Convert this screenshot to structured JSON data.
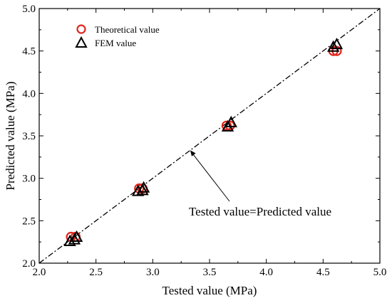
{
  "chart_data": {
    "type": "scatter",
    "xlabel": "Tested value (MPa)",
    "ylabel": "Predicted value (MPa)",
    "xlim": [
      2.0,
      5.0
    ],
    "ylim": [
      2.0,
      5.0
    ],
    "x_ticks": [
      "2.0",
      "2.5",
      "3.0",
      "3.5",
      "4.0",
      "4.5",
      "5.0"
    ],
    "y_ticks": [
      "2.0",
      "2.5",
      "3.0",
      "3.5",
      "4.0",
      "4.5",
      "5.0"
    ],
    "grid": false,
    "legend_position": "top-left",
    "series": [
      {
        "name": "Theoretical value",
        "marker": "circle",
        "color": "#e0261d",
        "points": [
          {
            "x": 2.28,
            "y": 2.31
          },
          {
            "x": 2.32,
            "y": 2.31
          },
          {
            "x": 2.88,
            "y": 2.88
          },
          {
            "x": 2.91,
            "y": 2.88
          },
          {
            "x": 3.65,
            "y": 3.62
          },
          {
            "x": 3.68,
            "y": 3.62
          },
          {
            "x": 4.59,
            "y": 4.5
          },
          {
            "x": 4.62,
            "y": 4.5
          }
        ]
      },
      {
        "name": "FEM value",
        "marker": "triangle",
        "color": "#000000",
        "points": [
          {
            "x": 2.27,
            "y": 2.26
          },
          {
            "x": 2.31,
            "y": 2.28
          },
          {
            "x": 2.33,
            "y": 2.31
          },
          {
            "x": 2.87,
            "y": 2.85
          },
          {
            "x": 2.91,
            "y": 2.86
          },
          {
            "x": 2.92,
            "y": 2.89
          },
          {
            "x": 3.66,
            "y": 3.61
          },
          {
            "x": 3.69,
            "y": 3.66
          },
          {
            "x": 4.59,
            "y": 4.55
          },
          {
            "x": 4.62,
            "y": 4.58
          }
        ]
      }
    ],
    "reference_line": {
      "from": [
        2.0,
        2.0
      ],
      "to": [
        5.0,
        5.0
      ],
      "style": "dash-dot"
    },
    "annotation": {
      "text": "Tested value=Predicted value",
      "arrow_target": {
        "x": 3.33,
        "y": 3.33
      },
      "text_anchor": {
        "x": 3.4,
        "y": 2.65
      }
    }
  }
}
